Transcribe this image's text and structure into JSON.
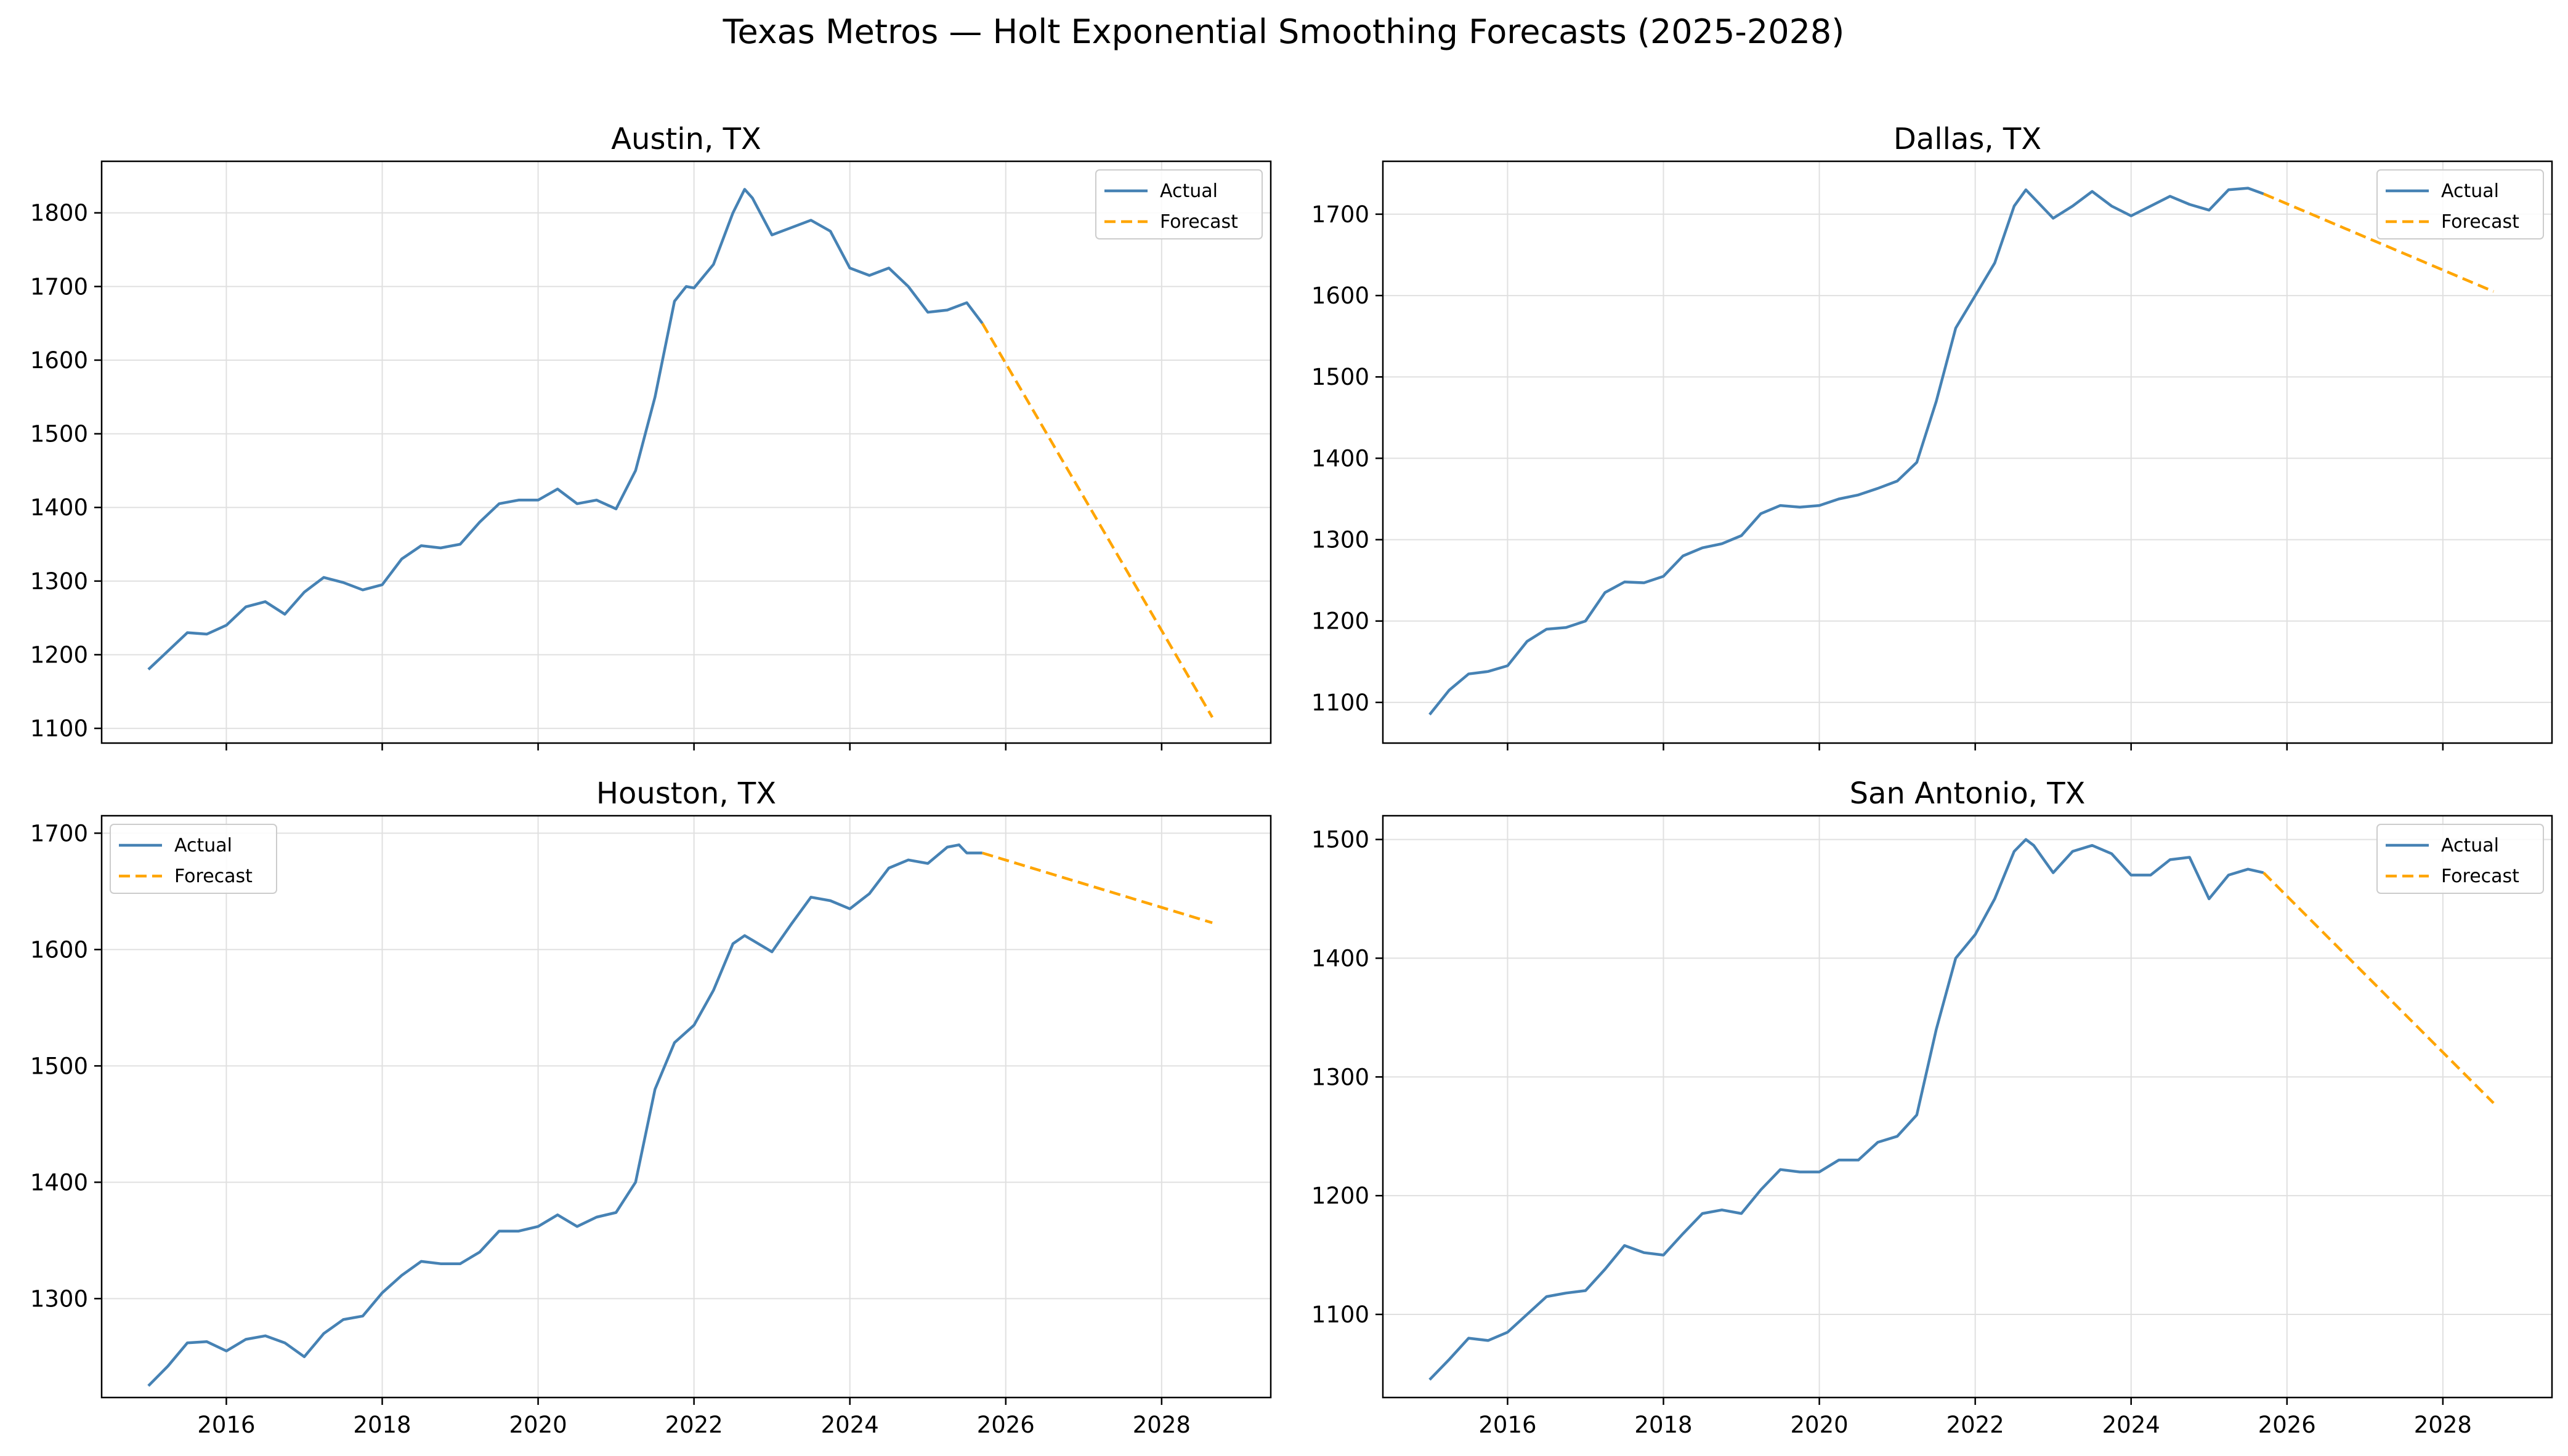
{
  "figure": {
    "title": "Texas Metros — Holt Exponential Smoothing Forecasts (2025-2028)"
  },
  "colors": {
    "actual": "#4682b4",
    "forecast": "#ffa500",
    "grid": "#e0e0e0"
  },
  "legend": {
    "actual": "Actual",
    "forecast": "Forecast"
  },
  "chart_data": [
    {
      "type": "line",
      "title": "Austin, TX",
      "xlabel": "",
      "ylabel": "",
      "xlim": [
        2014.4,
        2029.4
      ],
      "ylim": [
        1080,
        1870
      ],
      "xticks": [
        2016,
        2018,
        2020,
        2022,
        2024,
        2026,
        2028
      ],
      "yticks": [
        1100,
        1200,
        1300,
        1400,
        1500,
        1600,
        1700,
        1800
      ],
      "x_tick_labels_shown": false,
      "legend_position": "upper right",
      "grid": true,
      "series": [
        {
          "name": "Actual",
          "style": "solid",
          "x": [
            2015.0,
            2015.25,
            2015.5,
            2015.75,
            2016.0,
            2016.25,
            2016.5,
            2016.75,
            2017.0,
            2017.25,
            2017.5,
            2017.75,
            2018.0,
            2018.25,
            2018.5,
            2018.75,
            2019.0,
            2019.25,
            2019.5,
            2019.75,
            2020.0,
            2020.25,
            2020.5,
            2020.75,
            2021.0,
            2021.25,
            2021.5,
            2021.75,
            2021.9,
            2022.0,
            2022.25,
            2022.5,
            2022.65,
            2022.75,
            2023.0,
            2023.25,
            2023.5,
            2023.75,
            2024.0,
            2024.25,
            2024.5,
            2024.75,
            2025.0,
            2025.25,
            2025.5,
            2025.7
          ],
          "y": [
            1180,
            1205,
            1230,
            1228,
            1240,
            1265,
            1272,
            1255,
            1285,
            1305,
            1298,
            1288,
            1295,
            1330,
            1348,
            1345,
            1350,
            1380,
            1405,
            1410,
            1410,
            1425,
            1405,
            1410,
            1398,
            1450,
            1550,
            1680,
            1700,
            1698,
            1730,
            1800,
            1832,
            1820,
            1770,
            1780,
            1790,
            1775,
            1725,
            1715,
            1725,
            1700,
            1665,
            1668,
            1678,
            1650
          ]
        },
        {
          "name": "Forecast",
          "style": "dashed",
          "x": [
            2025.7,
            2028.65
          ],
          "y": [
            1650,
            1115
          ]
        }
      ]
    },
    {
      "type": "line",
      "title": "Dallas, TX",
      "xlabel": "",
      "ylabel": "",
      "xlim": [
        2014.4,
        2029.4
      ],
      "ylim": [
        1050,
        1765
      ],
      "xticks": [
        2016,
        2018,
        2020,
        2022,
        2024,
        2026,
        2028
      ],
      "yticks": [
        1100,
        1200,
        1300,
        1400,
        1500,
        1600,
        1700
      ],
      "x_tick_labels_shown": false,
      "legend_position": "upper right",
      "grid": true,
      "series": [
        {
          "name": "Actual",
          "style": "solid",
          "x": [
            2015.0,
            2015.25,
            2015.5,
            2015.75,
            2016.0,
            2016.25,
            2016.5,
            2016.75,
            2017.0,
            2017.25,
            2017.5,
            2017.75,
            2018.0,
            2018.25,
            2018.5,
            2018.75,
            2019.0,
            2019.25,
            2019.5,
            2019.75,
            2020.0,
            2020.25,
            2020.5,
            2020.75,
            2021.0,
            2021.25,
            2021.5,
            2021.75,
            2022.0,
            2022.25,
            2022.5,
            2022.65,
            2022.75,
            2023.0,
            2023.25,
            2023.5,
            2023.75,
            2024.0,
            2024.25,
            2024.5,
            2024.75,
            2025.0,
            2025.25,
            2025.5,
            2025.7
          ],
          "y": [
            1085,
            1115,
            1135,
            1138,
            1145,
            1175,
            1190,
            1192,
            1200,
            1235,
            1248,
            1247,
            1255,
            1280,
            1290,
            1295,
            1305,
            1332,
            1342,
            1340,
            1342,
            1350,
            1355,
            1363,
            1372,
            1395,
            1470,
            1560,
            1600,
            1640,
            1710,
            1730,
            1720,
            1695,
            1710,
            1728,
            1710,
            1698,
            1710,
            1722,
            1712,
            1705,
            1730,
            1732,
            1725
          ]
        },
        {
          "name": "Forecast",
          "style": "dashed",
          "x": [
            2025.7,
            2028.65
          ],
          "y": [
            1725,
            1605
          ]
        }
      ]
    },
    {
      "type": "line",
      "title": "Houston, TX",
      "xlabel": "",
      "ylabel": "",
      "xlim": [
        2014.4,
        2029.4
      ],
      "ylim": [
        1215,
        1715
      ],
      "xticks": [
        2016,
        2018,
        2020,
        2022,
        2024,
        2026,
        2028
      ],
      "yticks": [
        1300,
        1400,
        1500,
        1600,
        1700
      ],
      "x_tick_labels_shown": true,
      "legend_position": "upper left",
      "grid": true,
      "series": [
        {
          "name": "Actual",
          "style": "solid",
          "x": [
            2015.0,
            2015.25,
            2015.5,
            2015.75,
            2016.0,
            2016.25,
            2016.5,
            2016.75,
            2017.0,
            2017.25,
            2017.5,
            2017.75,
            2018.0,
            2018.25,
            2018.5,
            2018.75,
            2019.0,
            2019.25,
            2019.5,
            2019.75,
            2020.0,
            2020.25,
            2020.5,
            2020.75,
            2021.0,
            2021.25,
            2021.5,
            2021.75,
            2022.0,
            2022.25,
            2022.5,
            2022.65,
            2022.75,
            2023.0,
            2023.25,
            2023.5,
            2023.75,
            2024.0,
            2024.25,
            2024.5,
            2024.75,
            2025.0,
            2025.25,
            2025.4,
            2025.5,
            2025.7
          ],
          "y": [
            1225,
            1242,
            1262,
            1263,
            1255,
            1265,
            1268,
            1262,
            1250,
            1270,
            1282,
            1285,
            1305,
            1320,
            1332,
            1330,
            1330,
            1340,
            1358,
            1358,
            1362,
            1372,
            1362,
            1370,
            1374,
            1400,
            1480,
            1520,
            1535,
            1565,
            1605,
            1612,
            1608,
            1598,
            1622,
            1645,
            1642,
            1635,
            1648,
            1670,
            1677,
            1674,
            1688,
            1690,
            1683,
            1683
          ]
        },
        {
          "name": "Forecast",
          "style": "dashed",
          "x": [
            2025.7,
            2028.65
          ],
          "y": [
            1683,
            1623
          ]
        }
      ]
    },
    {
      "type": "line",
      "title": "San Antonio, TX",
      "xlabel": "",
      "ylabel": "",
      "xlim": [
        2014.4,
        2029.4
      ],
      "ylim": [
        1030,
        1520
      ],
      "xticks": [
        2016,
        2018,
        2020,
        2022,
        2024,
        2026,
        2028
      ],
      "yticks": [
        1100,
        1200,
        1300,
        1400,
        1500
      ],
      "x_tick_labels_shown": true,
      "legend_position": "upper right",
      "grid": true,
      "series": [
        {
          "name": "Actual",
          "style": "solid",
          "x": [
            2015.0,
            2015.25,
            2015.5,
            2015.75,
            2016.0,
            2016.25,
            2016.5,
            2016.75,
            2017.0,
            2017.25,
            2017.5,
            2017.75,
            2018.0,
            2018.25,
            2018.5,
            2018.75,
            2019.0,
            2019.25,
            2019.5,
            2019.75,
            2020.0,
            2020.25,
            2020.5,
            2020.75,
            2021.0,
            2021.25,
            2021.5,
            2021.75,
            2022.0,
            2022.25,
            2022.5,
            2022.65,
            2022.75,
            2023.0,
            2023.25,
            2023.5,
            2023.75,
            2024.0,
            2024.25,
            2024.5,
            2024.75,
            2025.0,
            2025.25,
            2025.5,
            2025.7
          ],
          "y": [
            1045,
            1062,
            1080,
            1078,
            1085,
            1100,
            1115,
            1118,
            1120,
            1138,
            1158,
            1152,
            1150,
            1168,
            1185,
            1188,
            1185,
            1205,
            1222,
            1220,
            1220,
            1230,
            1230,
            1245,
            1250,
            1268,
            1340,
            1400,
            1420,
            1450,
            1490,
            1500,
            1495,
            1472,
            1490,
            1495,
            1488,
            1470,
            1470,
            1483,
            1485,
            1450,
            1470,
            1475,
            1472
          ]
        },
        {
          "name": "Forecast",
          "style": "dashed",
          "x": [
            2025.7,
            2028.65
          ],
          "y": [
            1472,
            1278
          ]
        }
      ]
    }
  ]
}
